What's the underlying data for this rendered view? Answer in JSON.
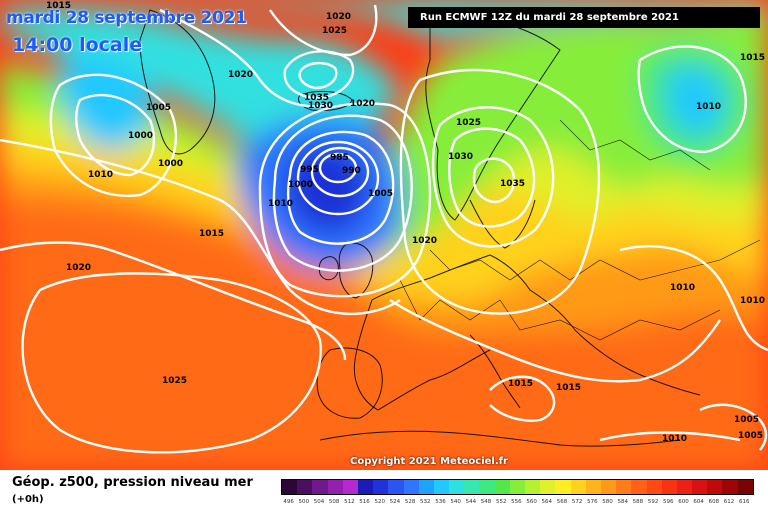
{
  "titles": {
    "date": "mardi 28 septembre 2021",
    "time": "14:00 locale",
    "run": "Run ECMWF 12Z du mardi 28 septembre 2021",
    "copyright": "Copyright 2021 Meteociel.fr"
  },
  "legend": {
    "title": "Géop. z500, pression niveau mer",
    "subtitle": "(+0h)",
    "labels": [
      "496",
      "500",
      "504",
      "508",
      "512",
      "516",
      "520",
      "524",
      "528",
      "532",
      "536",
      "540",
      "544",
      "548",
      "552",
      "556",
      "560",
      "564",
      "568",
      "572",
      "576",
      "580",
      "584",
      "588",
      "592",
      "596",
      "600",
      "604",
      "608",
      "612",
      "616"
    ],
    "colors": [
      "#2d0638",
      "#4a0f5e",
      "#6f1a8a",
      "#9420b0",
      "#b52ad0",
      "#1b1bb8",
      "#1f33d8",
      "#2a55f0",
      "#2f76ff",
      "#1ea4ff",
      "#22c8ff",
      "#30e0e0",
      "#38e6b0",
      "#40e880",
      "#52e84a",
      "#86ee3a",
      "#b6f030",
      "#e0f02a",
      "#ffee22",
      "#ffd21e",
      "#ffb41a",
      "#ff9a18",
      "#ff7c18",
      "#ff6216",
      "#ff4a14",
      "#f93214",
      "#ec2014",
      "#d81212",
      "#bf0a0a",
      "#9e0606",
      "#7a0404"
    ]
  },
  "isobar_labels": [
    "1015",
    "1020",
    "1025",
    "1020",
    "1005",
    "1000",
    "1000",
    "1010",
    "1015",
    "1020",
    "1035",
    "1030",
    "1020",
    "985",
    "995",
    "990",
    "1000",
    "1005",
    "1010",
    "1025",
    "1030",
    "1035",
    "1020",
    "1015",
    "1010",
    "1010",
    "1015",
    "1015",
    "1025",
    "1010",
    "1005",
    "1005",
    "1010",
    "1020",
    "1015",
    "1015"
  ]
}
